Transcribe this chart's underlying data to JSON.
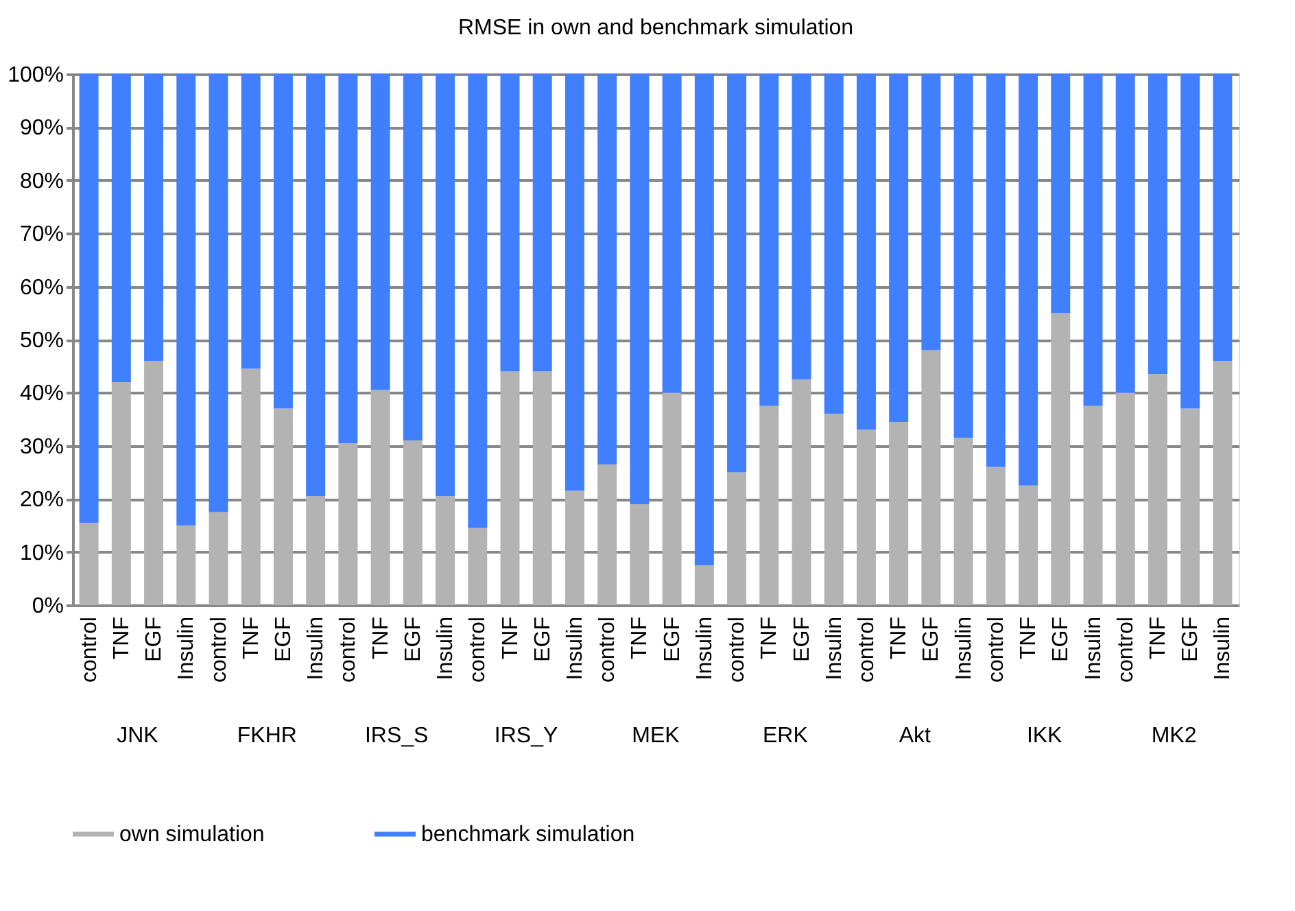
{
  "chart_data": {
    "type": "bar",
    "title": "RMSE in own and benchmark simulation",
    "stacked": true,
    "categories": [
      "control",
      "TNF",
      "EGF",
      "Insulin",
      "control",
      "TNF",
      "EGF",
      "Insulin",
      "control",
      "TNF",
      "EGF",
      "Insulin",
      "control",
      "TNF",
      "EGF",
      "Insulin",
      "control",
      "TNF",
      "EGF",
      "Insulin",
      "control",
      "TNF",
      "EGF",
      "Insulin",
      "control",
      "TNF",
      "EGF",
      "Insulin",
      "control",
      "TNF",
      "EGF",
      "Insulin",
      "control",
      "TNF",
      "EGF",
      "Insulin"
    ],
    "annotations": [
      "JNK",
      "FKHR",
      "IRS_S",
      "IRS_Y",
      "MEK",
      "ERK",
      "Akt",
      "IKK",
      "MK2"
    ],
    "series": [
      {
        "name": "own simulation",
        "color": "#b3b3b3",
        "values": [
          15.5,
          42,
          46,
          15,
          17.5,
          44.5,
          37,
          20.5,
          30.5,
          40.5,
          31,
          20.5,
          14.5,
          44,
          44,
          21.5,
          26.5,
          19,
          40,
          7.5,
          25,
          37.5,
          42.5,
          36,
          33,
          34.5,
          48,
          31.5,
          26,
          22.5,
          55,
          37.5,
          40,
          43.5,
          37,
          46
        ]
      },
      {
        "name": "benchmark simulation",
        "color": "#4080ff",
        "values": [
          84.5,
          58,
          54,
          85,
          82.5,
          55.5,
          63,
          79.5,
          69.5,
          59.5,
          69,
          79.5,
          85.5,
          56,
          56,
          78.5,
          73.5,
          81,
          60,
          92.5,
          75,
          62.5,
          57.5,
          64,
          67,
          65.5,
          52,
          68.5,
          74,
          77.5,
          45,
          62.5,
          60,
          56.5,
          63,
          54
        ]
      }
    ],
    "ylim": [
      0,
      100
    ],
    "yticks": [
      {
        "value": 0,
        "label": "0%"
      },
      {
        "value": 10,
        "label": "10%"
      },
      {
        "value": 20,
        "label": "20%"
      },
      {
        "value": 30,
        "label": "30%"
      },
      {
        "value": 40,
        "label": "40%"
      },
      {
        "value": 50,
        "label": "50%"
      },
      {
        "value": 60,
        "label": "60%"
      },
      {
        "value": 70,
        "label": "70%"
      },
      {
        "value": 80,
        "label": "80%"
      },
      {
        "value": 90,
        "label": "90%"
      },
      {
        "value": 100,
        "label": "100%"
      }
    ],
    "grid": "y",
    "legend": "bottom"
  }
}
